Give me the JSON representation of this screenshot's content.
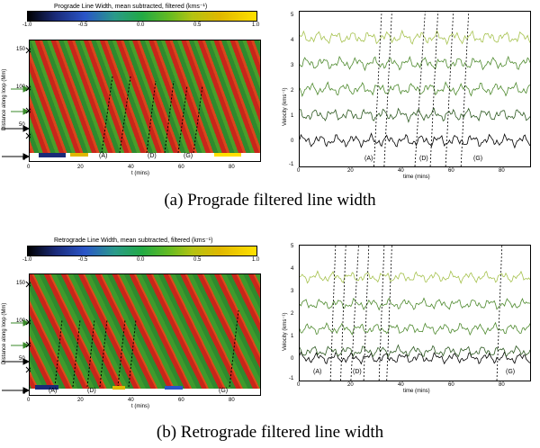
{
  "colors": {
    "trace_light": "#a6c24e",
    "trace_mid": "#4e8a2e",
    "trace_dark": "#2e5a22",
    "trace_black": "#000000",
    "dashed": "#000000"
  },
  "panel_a": {
    "colorbar_title": "Prograde Line Width, mean subtracted, filtered (kms⁻¹)",
    "colorbar_ticks": [
      "-1.0",
      "-0.5",
      "0.0",
      "0.5",
      "1.0"
    ],
    "map_ylabel": "Distance along loop (Mm)",
    "map_yticks": [
      "150",
      "100",
      "50",
      "0"
    ],
    "map_xticks": [
      "0",
      "20",
      "40",
      "60",
      "80"
    ],
    "map_xlabel": "t (mins)",
    "map_labels": [
      "(A)",
      "(D)",
      "(G)"
    ],
    "vel_ylabel": "Velocity (kms⁻¹)",
    "vel_yticks": [
      "5",
      "4",
      "3",
      "2",
      "1",
      "0",
      "-1"
    ],
    "vel_xticks": [
      "0",
      "20",
      "40",
      "60",
      "80"
    ],
    "vel_xlabel": "time (mins)",
    "vel_labels": [
      "(A)",
      "(D)",
      "(G)"
    ],
    "caption": "(a)  Prograde filtered line width"
  },
  "panel_b": {
    "colorbar_title": "Retrograde Line Width, mean subtracted, filtered (kms⁻¹)",
    "colorbar_ticks": [
      "-1.0",
      "-0.5",
      "0.0",
      "0.5",
      "1.0"
    ],
    "map_ylabel": "Distance along loop (Mm)",
    "map_yticks": [
      "150",
      "100",
      "50",
      "0"
    ],
    "map_xticks": [
      "0",
      "20",
      "40",
      "60",
      "80"
    ],
    "map_xlabel": "t (mins)",
    "map_labels": [
      "(A)",
      "(D)",
      "(G)"
    ],
    "vel_ylabel": "Velocity (kms⁻¹)",
    "vel_yticks": [
      "5",
      "4",
      "3",
      "2",
      "1",
      "0",
      "-1"
    ],
    "vel_xticks": [
      "0",
      "20",
      "40",
      "60",
      "80"
    ],
    "vel_xlabel": "time (mins)",
    "vel_labels": [
      "(A)",
      "(D)",
      "(G)"
    ],
    "caption": "(b)  Retrograde filtered line width"
  },
  "chart_data": [
    {
      "type": "line",
      "panel": "a",
      "xlabel": "time (mins)",
      "ylabel": "Velocity (kms⁻¹)",
      "xlim": [
        0,
        90
      ],
      "ylim": [
        -1,
        5
      ],
      "series_offsets": [
        0,
        1,
        2,
        3,
        4
      ],
      "labels": [
        "(A)",
        "(D)",
        "(G)"
      ],
      "dashed_times": [
        [
          29,
          32
        ],
        [
          33,
          36
        ],
        [
          45,
          49
        ],
        [
          51,
          54
        ],
        [
          57,
          60
        ],
        [
          63,
          66
        ]
      ]
    },
    {
      "type": "line",
      "panel": "b",
      "xlabel": "time (mins)",
      "ylabel": "Velocity (kms⁻¹)",
      "xlim": [
        0,
        90
      ],
      "ylim": [
        -1,
        5
      ],
      "series_offsets": [
        0,
        0.3,
        1.3,
        2.4,
        3.6
      ],
      "labels": [
        "(A)",
        "(D)",
        "(G)"
      ],
      "dashed_times": [
        [
          12,
          14
        ],
        [
          16,
          18
        ],
        [
          20,
          23
        ],
        [
          25,
          27
        ],
        [
          31,
          33
        ],
        [
          34,
          36
        ],
        [
          77,
          79
        ]
      ]
    }
  ]
}
